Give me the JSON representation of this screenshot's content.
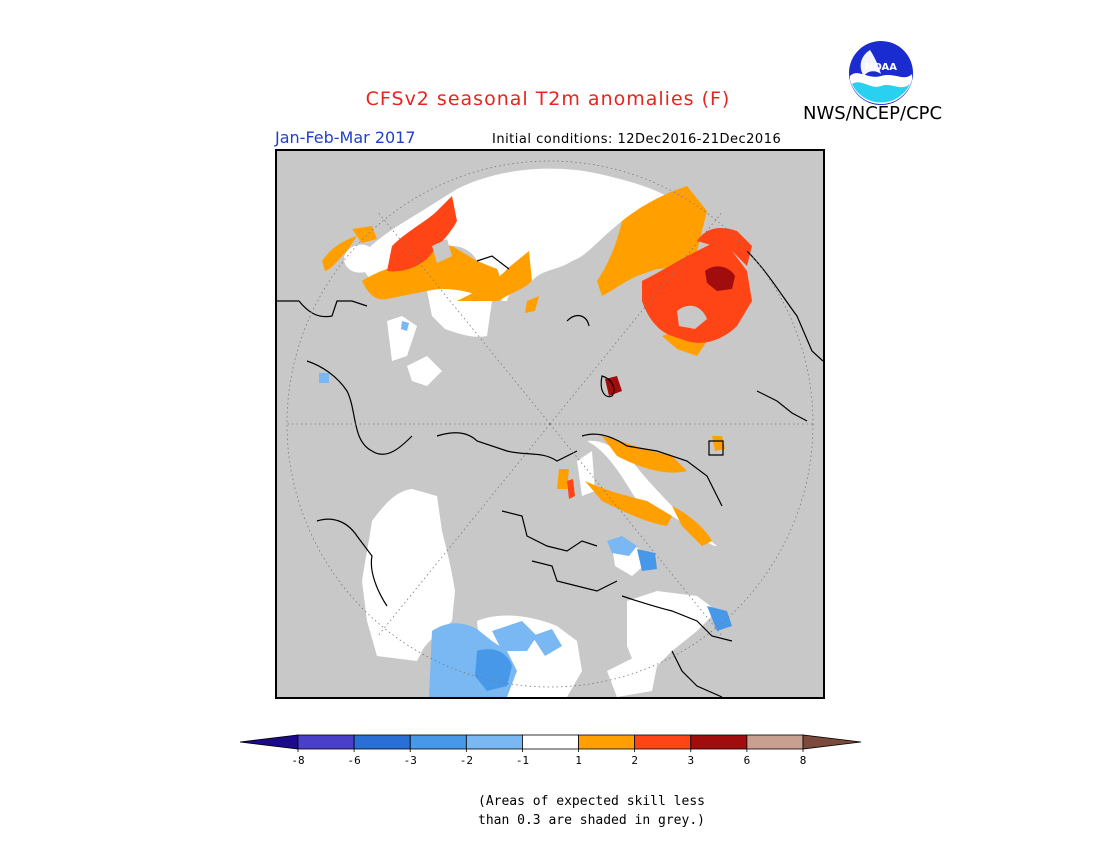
{
  "header": {
    "title": "CFSv2 seasonal T2m anomalies (F)",
    "organization": "NWS/NCEP/CPC",
    "period": "Jan-Feb-Mar 2017",
    "initial_conditions": "Initial conditions: 12Dec2016-21Dec2016",
    "logo_text": "NOAA"
  },
  "legend": {
    "tick_labels": [
      "-8",
      "-6",
      "-3",
      "-2",
      "-1",
      "1",
      "2",
      "3",
      "6",
      "8"
    ],
    "bins": [
      {
        "color": "#1b0b8c",
        "role": "below -8"
      },
      {
        "color": "#4a3fc9",
        "role": "-8 to -6"
      },
      {
        "color": "#2a6fd6",
        "role": "-6 to -3"
      },
      {
        "color": "#4898ea",
        "role": "-3 to -2"
      },
      {
        "color": "#79b8f2",
        "role": "-2 to -1"
      },
      {
        "color": "#ffffff",
        "role": "-1 to 1"
      },
      {
        "color": "#ffa000",
        "role": "1 to 2"
      },
      {
        "color": "#ff4516",
        "role": "2 to 3"
      },
      {
        "color": "#a10c0c",
        "role": "3 to 6"
      },
      {
        "color": "#c9a090",
        "role": "6 to 8"
      },
      {
        "color": "#7b4a3a",
        "role": "above 8"
      }
    ]
  },
  "footnote": {
    "line1": "(Areas of expected skill less",
    "line2": "than 0.3 are shaded in grey.)"
  },
  "colors": {
    "title": "#e8241e",
    "period": "#1f3fcf",
    "skill_grey": "#c8c8c8"
  }
}
